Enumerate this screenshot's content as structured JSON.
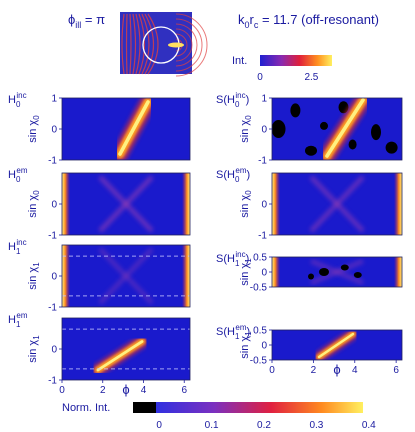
{
  "header": {
    "phi_label": "ϕ",
    "phi_sub": "ill",
    "phi_value": " = π",
    "k_label": "k",
    "k_sub1": "0",
    "k_mid": "r",
    "k_sub2": "c",
    "k_value": " = 11.7  (off-resonant)"
  },
  "intensity_colorbar": {
    "label": "Int.",
    "ticks": [
      "0",
      "2.5"
    ],
    "range": [
      0,
      3.5
    ]
  },
  "norm_colorbar": {
    "label": "Norm. Int.",
    "ticks": [
      "0",
      "0.1",
      "0.2",
      "0.3",
      "0.4"
    ],
    "range": [
      -0.05,
      0.45
    ]
  },
  "colors": {
    "text": "#1a1aa0",
    "background_field": "#1a1acc",
    "hot": "#ffe040",
    "dashed": "#c8c8ff"
  },
  "chart_data": [
    {
      "type": "heatmap",
      "panel": "left-1",
      "title_main": "H",
      "title_sub": "0",
      "title_sup": "inc",
      "ylabel_main": "sin χ",
      "ylabel_sub": "0",
      "xlim": [
        0,
        6.283
      ],
      "ylim": [
        -1,
        1
      ],
      "yticks": [
        "1",
        "0",
        "-1"
      ],
      "xticks": []
    },
    {
      "type": "heatmap",
      "panel": "left-2",
      "title_main": "H",
      "title_sub": "0",
      "title_sup": "em",
      "ylabel_main": "sin χ",
      "ylabel_sub": "0",
      "xlim": [
        0,
        6.283
      ],
      "ylim": [
        -1,
        1
      ],
      "yticks": [
        "0",
        "-1"
      ],
      "xticks": []
    },
    {
      "type": "heatmap",
      "panel": "left-3",
      "title_main": "H",
      "title_sub": "1",
      "title_sup": "inc",
      "ylabel_main": "sin χ",
      "ylabel_sub": "1",
      "xlim": [
        0,
        6.283
      ],
      "ylim": [
        -1,
        1
      ],
      "yticks": [
        "0",
        "-1"
      ],
      "xticks": []
    },
    {
      "type": "heatmap",
      "panel": "left-4",
      "title_main": "H",
      "title_sub": "1",
      "title_sup": "em",
      "ylabel_main": "sin χ",
      "ylabel_sub": "1",
      "xlim": [
        0,
        6.283
      ],
      "ylim": [
        -1,
        1
      ],
      "yticks": [
        "0",
        "-1"
      ],
      "xticks": [
        "0",
        "2",
        "4",
        "6"
      ],
      "xlabel": "ϕ"
    },
    {
      "type": "heatmap",
      "panel": "right-1",
      "title_main": "S(H",
      "title_sub": "0",
      "title_sup": "inc",
      "title_end": ")",
      "ylabel_main": "sin χ",
      "ylabel_sub": "0",
      "xlim": [
        0,
        6.283
      ],
      "ylim": [
        -1,
        1
      ],
      "yticks": [
        "1",
        "0",
        "-1"
      ],
      "xticks": []
    },
    {
      "type": "heatmap",
      "panel": "right-2",
      "title_main": "S(H",
      "title_sub": "0",
      "title_sup": "em",
      "title_end": ")",
      "ylabel_main": "sin χ",
      "ylabel_sub": "0",
      "xlim": [
        0,
        6.283
      ],
      "ylim": [
        -1,
        1
      ],
      "yticks": [
        "0",
        "-1"
      ],
      "xticks": []
    },
    {
      "type": "heatmap",
      "panel": "right-3",
      "title_main": "S(H",
      "title_sub": "1",
      "title_sup": "inc",
      "title_end": ")",
      "ylabel_main": "sin χ",
      "ylabel_sub": "1",
      "xlim": [
        0,
        6.283
      ],
      "ylim": [
        -0.5,
        0.5
      ],
      "yticks": [
        "0.5",
        "0",
        "-0.5"
      ],
      "xticks": []
    },
    {
      "type": "heatmap",
      "panel": "right-4",
      "title_main": "S(H",
      "title_sub": "1",
      "title_sup": "em",
      "title_end": ")",
      "ylabel_main": "sin χ",
      "ylabel_sub": "1",
      "xlim": [
        0,
        6.283
      ],
      "ylim": [
        -0.5,
        0.5
      ],
      "yticks": [
        "0.5",
        "0",
        "-0.5"
      ],
      "xticks": [
        "0",
        "2",
        "4",
        "6"
      ],
      "xlabel": "ϕ"
    }
  ]
}
